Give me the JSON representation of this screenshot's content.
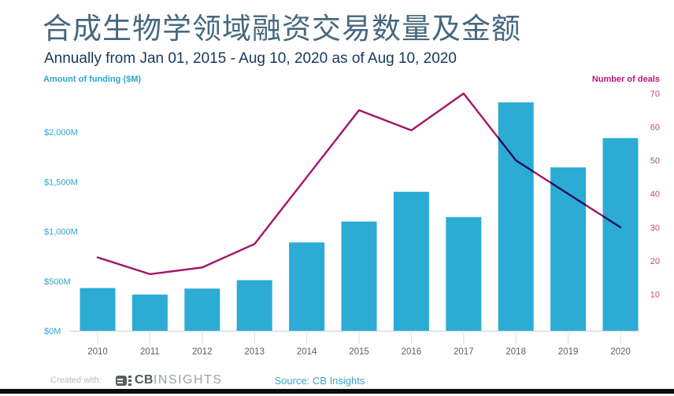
{
  "page": {
    "title": "合成生物学领域融资交易数量及金额",
    "subtitle": "Annually from Jan 01, 2015 - Aug 10, 2020 as of Aug 10, 2020"
  },
  "footer": {
    "created_with": "Created with:",
    "logo_cb": "CB",
    "logo_insights": "INSIGHTS",
    "source": "Source: CB Insights"
  },
  "colors": {
    "bar": "#2cabd4",
    "line": "#a21569",
    "left_axis_text": "#2ba6cd",
    "right_axis_text": "#bb4a8d",
    "x_axis_text": "#596067",
    "axis_line": "#d9dde0"
  },
  "chart_data": {
    "type": "bar",
    "note": "combo chart: bars = funding amount ($M), line = number of deals",
    "title": "合成生物学领域融资交易数量及金额",
    "subtitle": "Annually from Jan 01, 2015 - Aug 10, 2020 as of Aug 10, 2020",
    "categories": [
      "2010",
      "2011",
      "2012",
      "2013",
      "2014",
      "2015",
      "2016",
      "2017",
      "2018",
      "2019",
      "2020"
    ],
    "series": [
      {
        "name": "Amount of funding ($M)",
        "type": "bar",
        "axis": "left",
        "color": "#2cabd4",
        "values": [
          430,
          365,
          425,
          510,
          890,
          1100,
          1400,
          1145,
          2300,
          1645,
          1940
        ]
      },
      {
        "name": "Number of deals",
        "type": "line",
        "axis": "right",
        "color": "#a21569",
        "values": [
          21,
          16,
          18,
          25,
          45,
          65,
          59,
          70,
          50,
          40,
          30
        ]
      }
    ],
    "left_axis": {
      "title": "Amount of funding ($M)",
      "tick_labels": [
        "$0M",
        "$500M",
        "$1,000M",
        "$1,500M",
        "$2,000M"
      ],
      "tick_values": [
        0,
        500,
        1000,
        1500,
        2000
      ],
      "range": [
        0,
        2500
      ]
    },
    "right_axis": {
      "title": "Number of deals",
      "tick_labels": [
        "10",
        "20",
        "30",
        "40",
        "50",
        "60",
        "70"
      ],
      "tick_values": [
        10,
        20,
        30,
        40,
        50,
        60,
        70
      ],
      "range": [
        0,
        70
      ]
    },
    "grid": false,
    "legend_position": "none"
  }
}
